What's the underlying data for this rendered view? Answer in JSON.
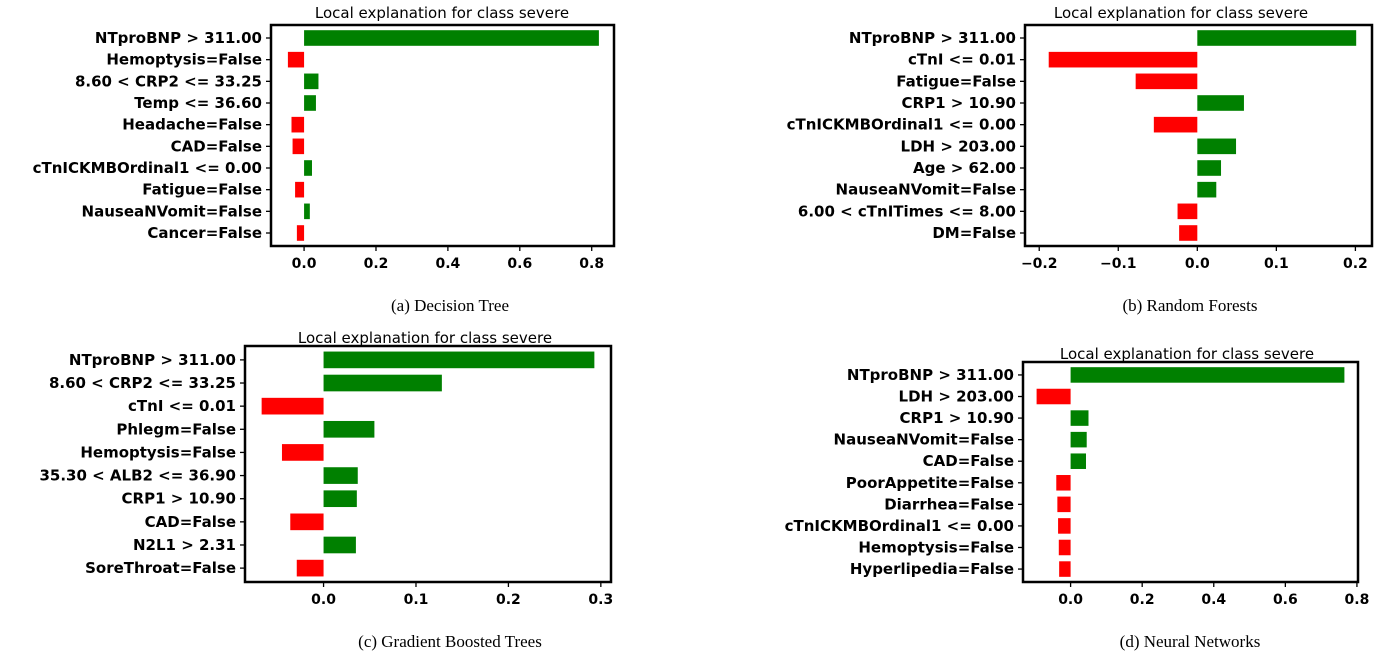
{
  "colors": {
    "positive": "#008000",
    "negative": "#ff0000",
    "axis": "#000000"
  },
  "chart_data": [
    {
      "type": "bar",
      "orientation": "horizontal",
      "title": "Local explanation for class severe",
      "caption": "(a) Decision Tree",
      "categories": [
        "NTproBNP > 311.00",
        "Hemoptysis=False",
        "8.60 < CRP2 <= 33.25",
        "Temp <= 36.60",
        "Headache=False",
        "CAD=False",
        "cTnICKMBOrdinal1 <= 0.00",
        "Fatigue=False",
        "NauseaNVomit=False",
        "Cancer=False"
      ],
      "values": [
        0.82,
        -0.045,
        0.04,
        0.033,
        -0.035,
        -0.032,
        0.022,
        -0.025,
        0.016,
        -0.02
      ],
      "xlim": [
        -0.092,
        0.862
      ],
      "xticks": [
        0.0,
        0.2,
        0.4,
        0.6,
        0.8
      ],
      "xticklabels": [
        "0.0",
        "0.2",
        "0.4",
        "0.6",
        "0.8"
      ]
    },
    {
      "type": "bar",
      "orientation": "horizontal",
      "title": "Local explanation for class severe",
      "caption": "(b) Random Forests",
      "categories": [
        "NTproBNP > 311.00",
        "cTnI <= 0.01",
        "Fatigue=False",
        "CRP1 > 10.90",
        "cTnICKMBOrdinal1 <= 0.00",
        "LDH > 203.00",
        "Age > 62.00",
        "NauseaNVomit=False",
        "6.00 < cTnITimes <= 8.00",
        "DM=False"
      ],
      "values": [
        0.201,
        -0.188,
        -0.078,
        0.059,
        -0.055,
        0.049,
        0.03,
        0.024,
        -0.025,
        -0.023
      ],
      "xlim": [
        -0.218,
        0.221
      ],
      "xticks": [
        -0.2,
        -0.1,
        0.0,
        0.1,
        0.2
      ],
      "xticklabels": [
        "−0.2",
        "−0.1",
        "0.0",
        "0.1",
        "0.2"
      ]
    },
    {
      "type": "bar",
      "orientation": "horizontal",
      "title": "Local explanation for class severe",
      "caption": "(c) Gradient Boosted Trees",
      "categories": [
        "NTproBNP > 311.00",
        "8.60 < CRP2 <= 33.25",
        "cTnI <= 0.01",
        "Phlegm=False",
        "Hemoptysis=False",
        "35.30 < ALB2 <= 36.90",
        "CRP1 > 10.90",
        "CAD=False",
        "N2L1 > 2.31",
        "SoreThroat=False"
      ],
      "values": [
        0.293,
        0.128,
        -0.067,
        0.055,
        -0.045,
        0.037,
        0.036,
        -0.036,
        0.035,
        -0.029
      ],
      "xlim": [
        -0.085,
        0.311
      ],
      "xticks": [
        0.0,
        0.1,
        0.2,
        0.3
      ],
      "xticklabels": [
        "0.0",
        "0.1",
        "0.2",
        "0.3"
      ]
    },
    {
      "type": "bar",
      "orientation": "horizontal",
      "title": "Local explanation for class severe",
      "caption": "(d) Neural Networks",
      "categories": [
        "NTproBNP > 311.00",
        "LDH > 203.00",
        "CRP1 > 10.90",
        "NauseaNVomit=False",
        "CAD=False",
        "PoorAppetite=False",
        "Diarrhea=False",
        "cTnICKMBOrdinal1 <= 0.00",
        "Hemoptysis=False",
        "Hyperlipedia=False"
      ],
      "values": [
        0.765,
        -0.095,
        0.05,
        0.045,
        0.043,
        -0.04,
        -0.037,
        -0.035,
        -0.033,
        -0.032
      ],
      "xlim": [
        -0.133,
        0.803
      ],
      "xticks": [
        0.0,
        0.2,
        0.4,
        0.6,
        0.8
      ],
      "xticklabels": [
        "0.0",
        "0.2",
        "0.4",
        "0.6",
        "0.8"
      ]
    }
  ]
}
